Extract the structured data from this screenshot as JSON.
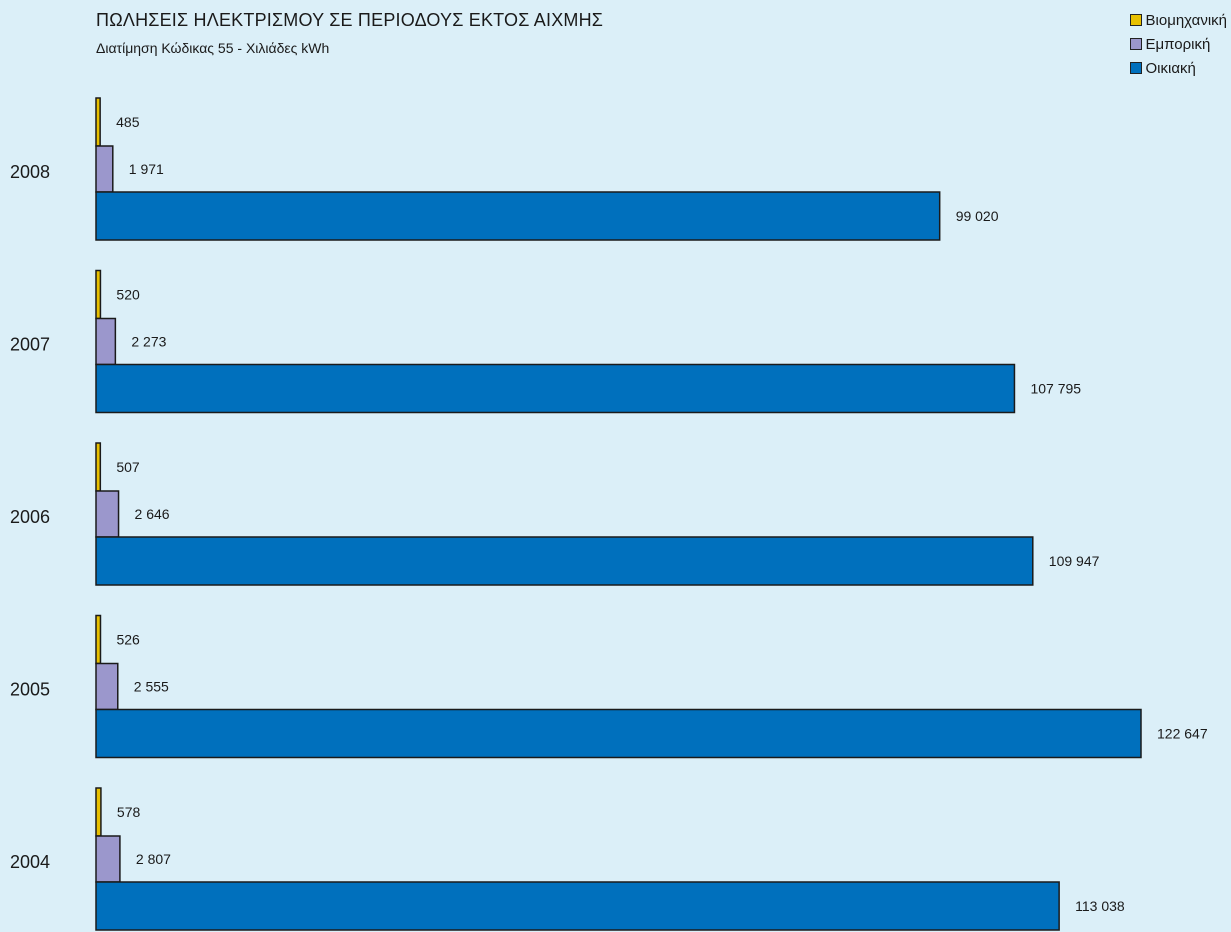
{
  "chart_data": {
    "type": "bar",
    "orientation": "horizontal",
    "title": "ΠΩΛΗΣΕΙΣ ΗΛΕΚΤΡΙΣΜΟΥ ΣΕ ΠΕΡΙΟΔΟΥΣ ΕΚΤΟΣ ΑΙΧΜΗΣ",
    "subtitle": "Διατίμηση Κώδικας 55 - Χιλιάδες kWh",
    "categories": [
      "2008",
      "2007",
      "2006",
      "2005",
      "2004"
    ],
    "series": [
      {
        "name": "Βιομηχανική",
        "color": "#e8c000",
        "values": [
          485,
          520,
          507,
          526,
          578
        ],
        "labels": [
          "485",
          "520",
          "507",
          "526",
          "578"
        ]
      },
      {
        "name": "Εμπορική",
        "color": "#9b97cc",
        "values": [
          1971,
          2273,
          2646,
          2555,
          2807
        ],
        "labels": [
          "1 971",
          "2 273",
          "2 646",
          "2 555",
          "2 807"
        ]
      },
      {
        "name": "Οικιακή",
        "color": "#0070bd",
        "values": [
          99020,
          107795,
          109947,
          122647,
          113038
        ],
        "labels": [
          "99 020",
          "107 795",
          "109 947",
          "122 647",
          "113 038"
        ]
      }
    ],
    "legend_position": "top-right",
    "grid": false
  }
}
